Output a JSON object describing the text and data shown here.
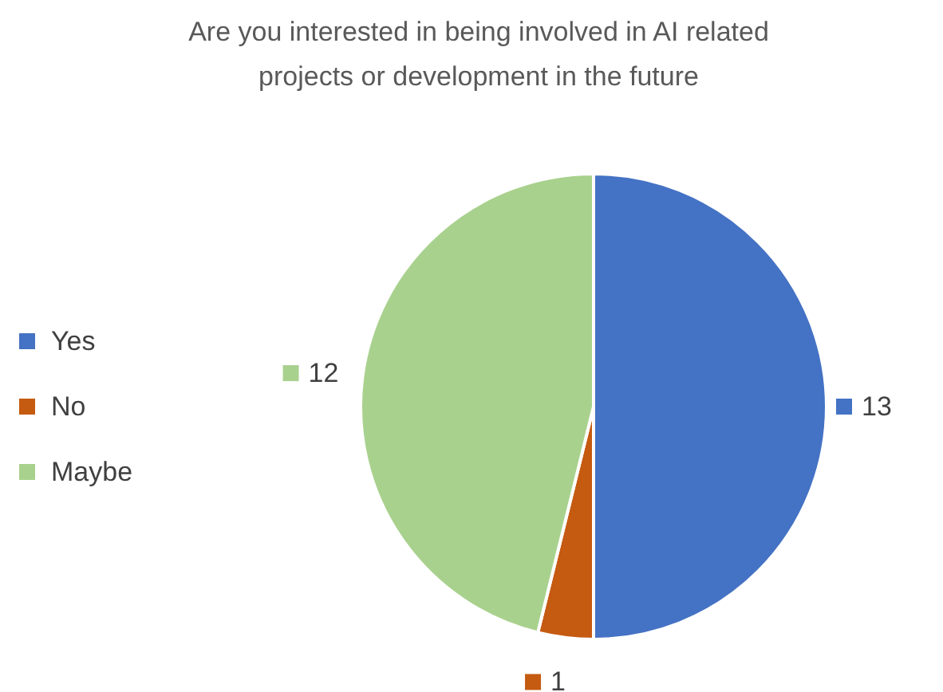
{
  "chart_data": {
    "type": "pie",
    "title": "Are you interested in being involved in AI related projects or development in the future",
    "categories": [
      "Yes",
      "No",
      "Maybe"
    ],
    "values": [
      13,
      1,
      12
    ],
    "colors": [
      "#4472c4",
      "#c55a11",
      "#a9d18e"
    ],
    "data_labels": true,
    "legend": "left"
  }
}
